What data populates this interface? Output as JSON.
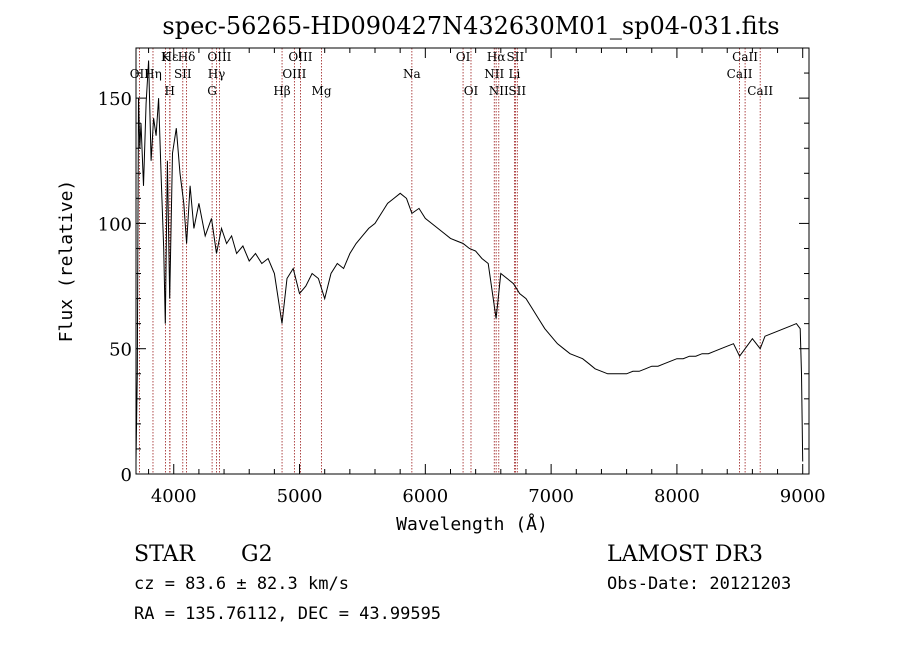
{
  "page": {
    "title": "spec-56265-HD090427N432630M01_sp04-031.fits",
    "classification": "STAR",
    "subclass": "G2",
    "survey": "LAMOST DR3",
    "cz": "cz = 83.6 ± 82.3 km/s",
    "obs_date": "Obs-Date: 20121203",
    "coords": "RA = 135.76112, DEC =  43.99595"
  },
  "colors": {
    "spectrum": "#000000",
    "line_marker": "#9b1b1b",
    "axis": "#000000"
  },
  "chart_data": {
    "type": "line",
    "title": "spec-56265-HD090427N432630M01_sp04-031.fits",
    "xlabel": "Wavelength (Å)",
    "ylabel": "Flux (relative)",
    "xlim": [
      3700,
      9050
    ],
    "ylim": [
      0,
      170
    ],
    "x_ticks": [
      4000,
      5000,
      6000,
      7000,
      8000,
      9000
    ],
    "y_ticks": [
      0,
      50,
      100,
      150
    ],
    "grid": false,
    "series": [
      {
        "x": [
          3700,
          3710,
          3720,
          3730,
          3740,
          3760,
          3780,
          3800,
          3820,
          3840,
          3860,
          3880,
          3900,
          3920,
          3933,
          3950,
          3968,
          3990,
          4020,
          4050,
          4080,
          4102,
          4130,
          4160,
          4200,
          4250,
          4300,
          4340,
          4380,
          4420,
          4460,
          4500,
          4550,
          4600,
          4650,
          4700,
          4750,
          4800,
          4861,
          4900,
          4950,
          5000,
          5050,
          5100,
          5150,
          5200,
          5250,
          5300,
          5350,
          5400,
          5450,
          5500,
          5550,
          5600,
          5650,
          5700,
          5750,
          5800,
          5850,
          5893,
          5950,
          6000,
          6050,
          6100,
          6150,
          6200,
          6250,
          6300,
          6350,
          6400,
          6450,
          6500,
          6563,
          6600,
          6650,
          6700,
          6750,
          6800,
          6850,
          6900,
          6950,
          7000,
          7050,
          7100,
          7150,
          7200,
          7250,
          7300,
          7350,
          7400,
          7450,
          7500,
          7550,
          7600,
          7650,
          7700,
          7750,
          7800,
          7850,
          7900,
          7950,
          8000,
          8050,
          8100,
          8150,
          8200,
          8250,
          8300,
          8350,
          8400,
          8450,
          8498,
          8542,
          8600,
          8662,
          8700,
          8750,
          8800,
          8850,
          8900,
          8950,
          8980,
          8990,
          9000
        ],
        "y": [
          5,
          40,
          150,
          130,
          140,
          115,
          148,
          165,
          125,
          142,
          135,
          150,
          118,
          90,
          60,
          125,
          70,
          128,
          138,
          120,
          108,
          92,
          115,
          98,
          108,
          95,
          102,
          88,
          98,
          92,
          95,
          88,
          91,
          85,
          88,
          84,
          86,
          80,
          60,
          78,
          82,
          72,
          75,
          80,
          78,
          70,
          80,
          84,
          82,
          88,
          92,
          95,
          98,
          100,
          104,
          108,
          110,
          112,
          110,
          104,
          106,
          102,
          100,
          98,
          96,
          94,
          93,
          92,
          90,
          89,
          86,
          84,
          62,
          80,
          78,
          76,
          72,
          70,
          66,
          62,
          58,
          55,
          52,
          50,
          48,
          47,
          46,
          44,
          42,
          41,
          40,
          40,
          40,
          40,
          41,
          41,
          42,
          43,
          43,
          44,
          45,
          46,
          46,
          47,
          47,
          48,
          48,
          49,
          50,
          51,
          52,
          47,
          50,
          54,
          50,
          55,
          56,
          57,
          58,
          59,
          60,
          58,
          40,
          5
        ]
      }
    ],
    "line_markers": [
      {
        "label": "Hε",
        "wavelength": 3970,
        "row": 0
      },
      {
        "label": "K",
        "wavelength": 3934,
        "row": 0
      },
      {
        "label": "Hδ",
        "wavelength": 4102,
        "row": 0
      },
      {
        "label": "OII",
        "wavelength": 3727,
        "row": 1
      },
      {
        "label": "Hη",
        "wavelength": 3835,
        "row": 1
      },
      {
        "label": "SII",
        "wavelength": 4072,
        "row": 1
      },
      {
        "label": "OIII",
        "wavelength": 4363,
        "row": 0
      },
      {
        "label": "Hγ",
        "wavelength": 4340,
        "row": 1
      },
      {
        "label": "G",
        "wavelength": 4305,
        "row": 2
      },
      {
        "label": "H",
        "wavelength": 3968,
        "row": 2
      },
      {
        "label": "OIII",
        "wavelength": 5007,
        "row": 0
      },
      {
        "label": "OIII",
        "wavelength": 4959,
        "row": 1
      },
      {
        "label": "Hβ",
        "wavelength": 4861,
        "row": 2
      },
      {
        "label": "Mg",
        "wavelength": 5175,
        "row": 2
      },
      {
        "label": "Na",
        "wavelength": 5893,
        "row": 1
      },
      {
        "label": "OI",
        "wavelength": 6300,
        "row": 0
      },
      {
        "label": "OI",
        "wavelength": 6363,
        "row": 2
      },
      {
        "label": "Hα",
        "wavelength": 6563,
        "row": 0
      },
      {
        "label": "SII",
        "wavelength": 6716,
        "row": 0
      },
      {
        "label": "NII",
        "wavelength": 6548,
        "row": 1
      },
      {
        "label": "Li",
        "wavelength": 6708,
        "row": 1
      },
      {
        "label": "NII",
        "wavelength": 6584,
        "row": 2
      },
      {
        "label": "SII",
        "wavelength": 6731,
        "row": 2
      },
      {
        "label": "CaII",
        "wavelength": 8542,
        "row": 0
      },
      {
        "label": "CaII",
        "wavelength": 8498,
        "row": 1
      },
      {
        "label": "CaII",
        "wavelength": 8662,
        "row": 2
      }
    ]
  }
}
